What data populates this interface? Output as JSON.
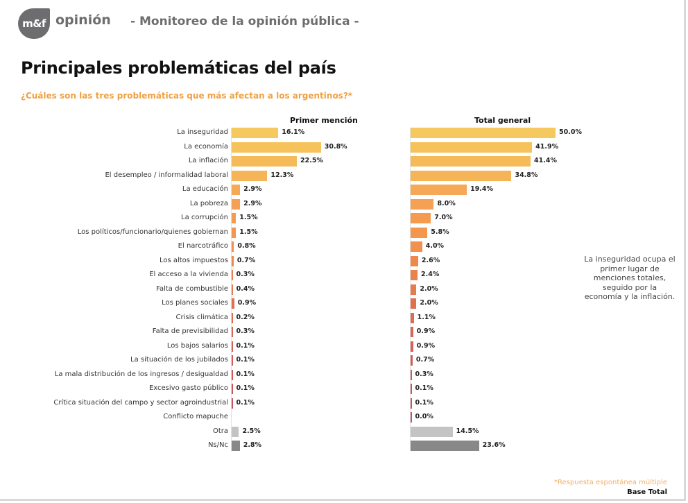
{
  "header": {
    "logo_text": "m&f",
    "brand": "opinión",
    "subtitle": "- Monitoreo de la opinión pública -"
  },
  "title": "Principales problemáticas del país",
  "question": "¿Cuáles son las tres problemáticas que más afectan a los argentinos?*",
  "note": "La inseguridad ocupa el primer lugar de menciones totales, seguido por la economía y la inflación.",
  "footnote": "*Respuesta espontánea múltiple",
  "base": "Base Total",
  "chart_data": {
    "type": "bar",
    "orientation": "horizontal",
    "title": "Principales problemáticas del país",
    "subtitle": "¿Cuáles son las tres problemáticas que más afectan a los argentinos?*",
    "xlabel": "",
    "ylabel": "",
    "xlim": [
      0,
      50
    ],
    "grid": false,
    "value_format": "percent_1dp",
    "categories": [
      "La inseguridad",
      "La economía",
      "La inflación",
      "El desempleo / informalidad laboral",
      "La educación",
      "La pobreza",
      "La corrupción",
      "Los políticos/funcionario/quienes gobiernan",
      "El narcotráfico",
      "Los altos impuestos",
      "El acceso a la vivienda",
      "Falta de combustible",
      "Los planes sociales",
      "Crisis climática",
      "Falta de previsibilidad",
      "Los bajos salarios",
      "La situación de los jubilados",
      "La mala distribución de los ingresos / desigualdad",
      "Excesivo gasto público",
      "Crítica situación del campo y sector agroindustrial",
      "Conflicto mapuche",
      "Otra",
      "Ns/Nc"
    ],
    "series": [
      {
        "name": "Primer mención",
        "values": [
          16.1,
          30.8,
          22.5,
          12.3,
          2.9,
          2.9,
          1.5,
          1.5,
          0.8,
          0.7,
          0.3,
          0.4,
          0.9,
          0.2,
          0.3,
          0.1,
          0.1,
          0.1,
          0.1,
          0.1,
          null,
          2.5,
          2.8
        ]
      },
      {
        "name": "Total general",
        "values": [
          50.0,
          41.9,
          41.4,
          34.8,
          19.4,
          8.0,
          7.0,
          5.8,
          4.0,
          2.6,
          2.4,
          2.0,
          2.0,
          1.1,
          0.9,
          0.9,
          0.7,
          0.3,
          0.1,
          0.1,
          0.0,
          14.5,
          23.6
        ]
      }
    ],
    "colors": [
      "#f5c95f",
      "#f5c25c",
      "#f5bb59",
      "#f5b457",
      "#f5a855",
      "#f5a052",
      "#f59b50",
      "#f5964e",
      "#f2904d",
      "#ee884d",
      "#ea824d",
      "#e67c4e",
      "#e0704f",
      "#dc6c52",
      "#d86654",
      "#d46256",
      "#d05e58",
      "#cc5a5a",
      "#c8585c",
      "#c4565e",
      "#c05460",
      "#c4c4c4",
      "#888888"
    ]
  }
}
